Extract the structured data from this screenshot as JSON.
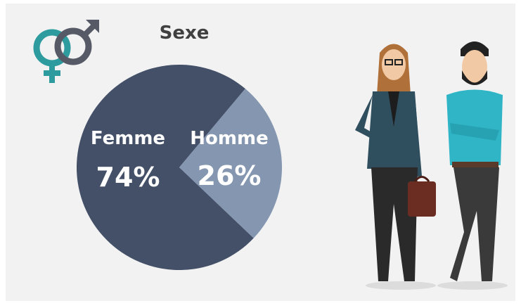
{
  "chart_data": {
    "type": "pie",
    "title": "Sexe",
    "categories": [
      "Femme",
      "Homme"
    ],
    "values": [
      74,
      26
    ],
    "value_labels": [
      "74%",
      "26%"
    ],
    "colors": [
      "#435068",
      "#8496b0"
    ]
  }
}
